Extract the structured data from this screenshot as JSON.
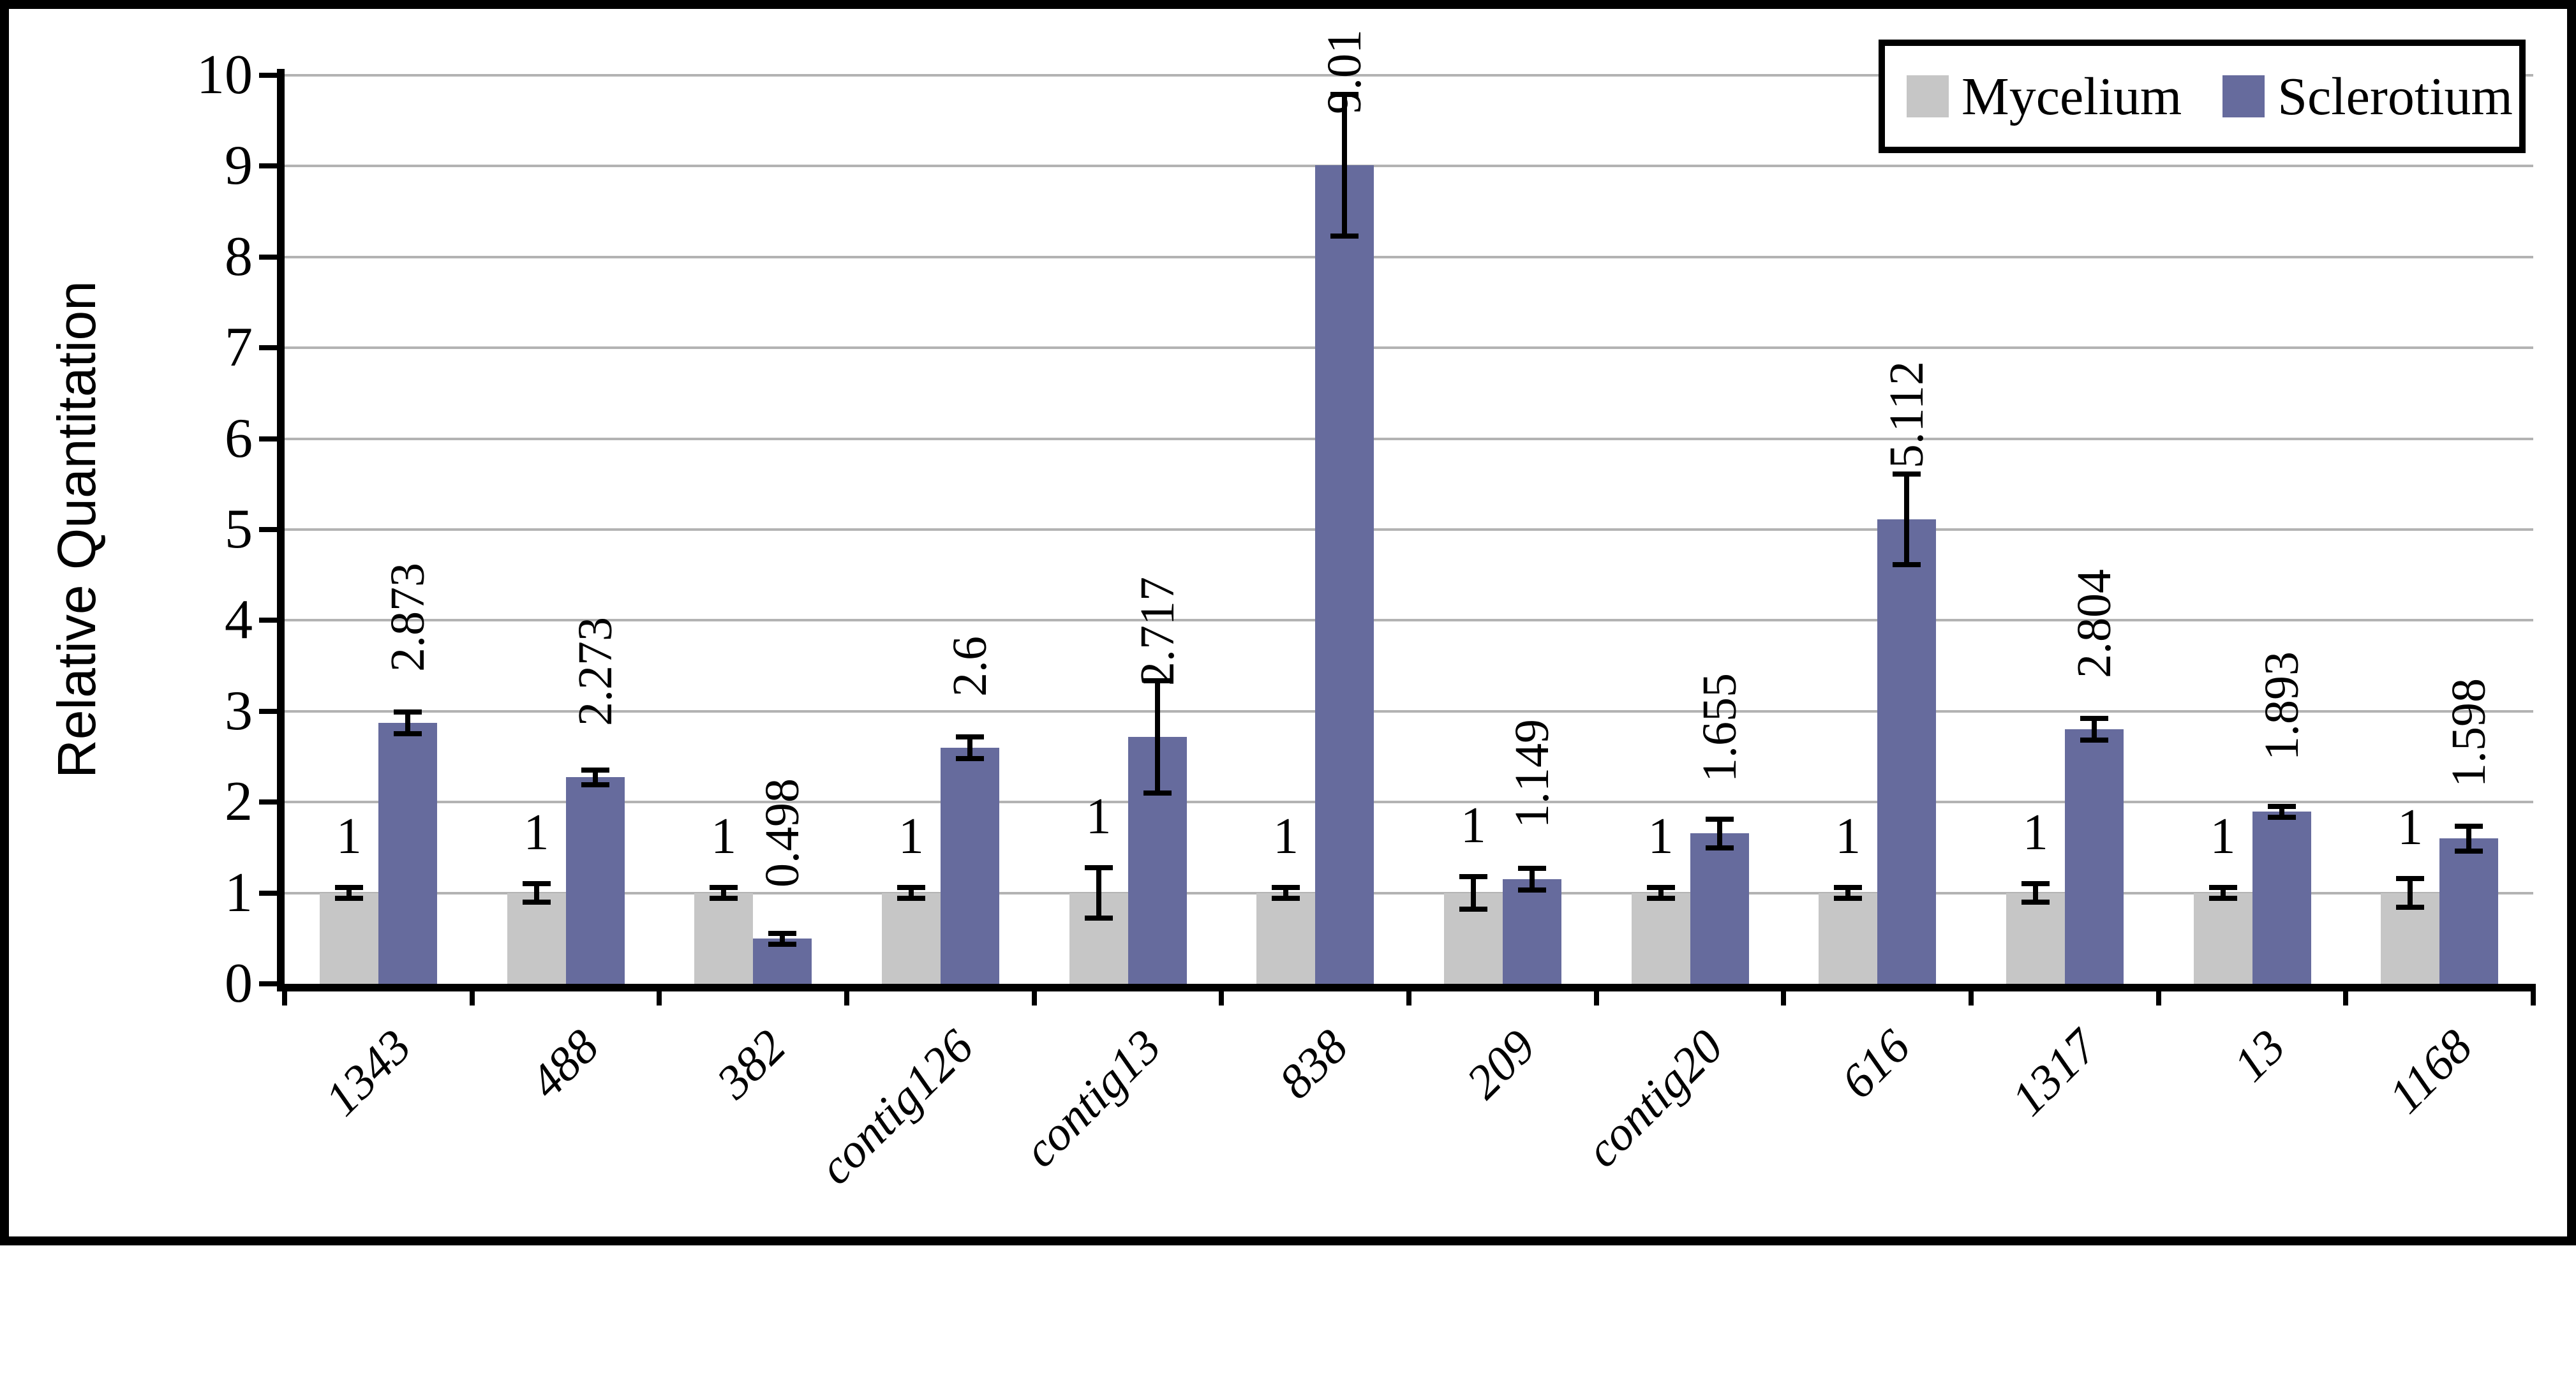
{
  "figure": {
    "background_color": "#ffffff",
    "border_color": "#000000"
  },
  "colors": {
    "axis": "#000000",
    "gridline": "#b3b3b3",
    "error_bar": "#000000",
    "text": "#000000",
    "legend_background": "#ffffff"
  },
  "chart_data": {
    "type": "bar",
    "title": "",
    "xlabel": "",
    "ylabel": "Relative Quantitation",
    "ylim": [
      0,
      10
    ],
    "yticks": [
      0,
      1,
      2,
      3,
      4,
      5,
      6,
      7,
      8,
      9,
      10
    ],
    "grid": "horizontal",
    "legend_position": "top-right",
    "categories": [
      "1343",
      "488",
      "382",
      "contig126",
      "contig13",
      "838",
      "209",
      "contig20",
      "616",
      "1317",
      "13",
      "1168"
    ],
    "series": [
      {
        "name": "Mycelium",
        "color": "#c6c6c6",
        "values": [
          1,
          1,
          1,
          1,
          1,
          1,
          1,
          1,
          1,
          1,
          1,
          1
        ],
        "value_labels": [
          "1",
          "1",
          "1",
          "1",
          "1",
          "1",
          "1",
          "1",
          "1",
          "1",
          "1",
          "1"
        ],
        "errors": [
          0.06,
          0.1,
          0.06,
          0.06,
          0.28,
          0.06,
          0.18,
          0.06,
          0.06,
          0.1,
          0.06,
          0.16
        ]
      },
      {
        "name": "Sclerotium",
        "color": "#666b9d",
        "values": [
          2.873,
          2.273,
          0.498,
          2.6,
          2.717,
          9.01,
          1.149,
          1.655,
          5.112,
          2.804,
          1.893,
          1.598
        ],
        "value_labels": [
          "2.873",
          "2.273",
          "0.498",
          "2.6",
          "2.717",
          "9.01",
          "1.149",
          "1.655",
          "5.112",
          "2.804",
          "1.893",
          "1.598"
        ],
        "errors": [
          0.12,
          0.08,
          0.06,
          0.12,
          0.62,
          0.78,
          0.12,
          0.16,
          0.5,
          0.12,
          0.06,
          0.14
        ]
      }
    ]
  }
}
